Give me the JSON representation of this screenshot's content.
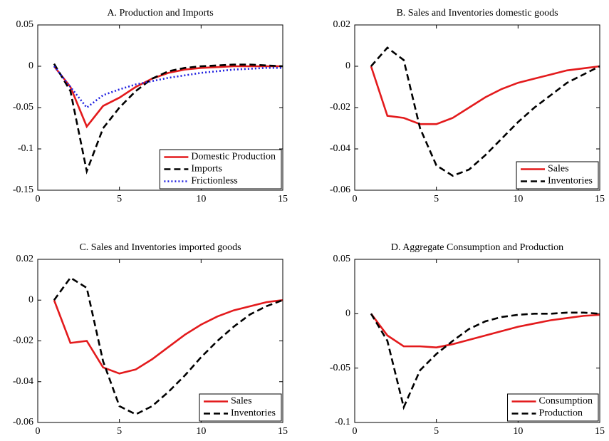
{
  "chart_data": [
    {
      "type": "line",
      "title": "A. Production and Imports",
      "x": [
        1,
        2,
        3,
        4,
        5,
        6,
        7,
        8,
        9,
        10,
        11,
        12,
        13,
        14,
        15
      ],
      "xlim": [
        0,
        15
      ],
      "xticks": [
        0,
        5,
        10,
        15
      ],
      "ylim": [
        -0.15,
        0.05
      ],
      "yticks": [
        -0.15,
        -0.1,
        -0.05,
        0,
        0.05
      ],
      "legend": "lower right",
      "series": [
        {
          "name": "Domestic Production",
          "color": "#e31a1c",
          "style": "solid",
          "values": [
            0,
            -0.025,
            -0.073,
            -0.048,
            -0.038,
            -0.025,
            -0.015,
            -0.008,
            -0.004,
            -0.002,
            -0.001,
            0,
            0,
            0,
            0
          ]
        },
        {
          "name": "Imports",
          "color": "#000000",
          "style": "dashed",
          "values": [
            0.003,
            -0.03,
            -0.127,
            -0.075,
            -0.05,
            -0.03,
            -0.015,
            -0.006,
            -0.002,
            0,
            0.001,
            0.002,
            0.002,
            0.001,
            0
          ]
        },
        {
          "name": "Frictionless",
          "color": "#1f1fe0",
          "style": "dotted",
          "values": [
            0,
            -0.025,
            -0.05,
            -0.035,
            -0.028,
            -0.022,
            -0.018,
            -0.014,
            -0.011,
            -0.008,
            -0.006,
            -0.004,
            -0.003,
            -0.002,
            -0.002
          ]
        }
      ]
    },
    {
      "type": "line",
      "title": "B. Sales and Inventories domestic goods",
      "x": [
        1,
        2,
        3,
        4,
        5,
        6,
        7,
        8,
        9,
        10,
        11,
        12,
        13,
        14,
        15
      ],
      "xlim": [
        0,
        15
      ],
      "xticks": [
        0,
        5,
        10,
        15
      ],
      "ylim": [
        -0.06,
        0.02
      ],
      "yticks": [
        -0.06,
        -0.04,
        -0.02,
        0,
        0.02
      ],
      "legend": "lower right",
      "series": [
        {
          "name": "Sales",
          "color": "#e31a1c",
          "style": "solid",
          "values": [
            0,
            -0.024,
            -0.025,
            -0.028,
            -0.028,
            -0.025,
            -0.02,
            -0.015,
            -0.011,
            -0.008,
            -0.006,
            -0.004,
            -0.002,
            -0.001,
            0
          ]
        },
        {
          "name": "Inventories",
          "color": "#000000",
          "style": "dashed",
          "values": [
            0,
            0.009,
            0.003,
            -0.03,
            -0.048,
            -0.053,
            -0.05,
            -0.043,
            -0.035,
            -0.027,
            -0.02,
            -0.014,
            -0.008,
            -0.004,
            0
          ]
        }
      ]
    },
    {
      "type": "line",
      "title": "C. Sales and Inventories imported goods",
      "x": [
        1,
        2,
        3,
        4,
        5,
        6,
        7,
        8,
        9,
        10,
        11,
        12,
        13,
        14,
        15
      ],
      "xlim": [
        0,
        15
      ],
      "xticks": [
        0,
        5,
        10,
        15
      ],
      "ylim": [
        -0.06,
        0.02
      ],
      "yticks": [
        -0.06,
        -0.04,
        -0.02,
        0,
        0.02
      ],
      "legend": "lower right",
      "series": [
        {
          "name": "Sales",
          "color": "#e31a1c",
          "style": "solid",
          "values": [
            0,
            -0.021,
            -0.02,
            -0.033,
            -0.036,
            -0.034,
            -0.029,
            -0.023,
            -0.017,
            -0.012,
            -0.008,
            -0.005,
            -0.003,
            -0.001,
            0
          ]
        },
        {
          "name": "Inventories",
          "color": "#000000",
          "style": "dashed",
          "values": [
            0,
            0.011,
            0.006,
            -0.03,
            -0.052,
            -0.056,
            -0.052,
            -0.045,
            -0.037,
            -0.028,
            -0.02,
            -0.013,
            -0.007,
            -0.003,
            0
          ]
        }
      ]
    },
    {
      "type": "line",
      "title": "D. Aggregate Consumption and Production",
      "x": [
        1,
        2,
        3,
        4,
        5,
        6,
        7,
        8,
        9,
        10,
        11,
        12,
        13,
        14,
        15
      ],
      "xlim": [
        0,
        15
      ],
      "xticks": [
        0,
        5,
        10,
        15
      ],
      "ylim": [
        -0.1,
        0.05
      ],
      "yticks": [
        -0.1,
        -0.05,
        0,
        0.05
      ],
      "legend": "lower right",
      "series": [
        {
          "name": "Consumption",
          "color": "#e31a1c",
          "style": "solid",
          "values": [
            0,
            -0.02,
            -0.03,
            -0.03,
            -0.031,
            -0.028,
            -0.024,
            -0.02,
            -0.016,
            -0.012,
            -0.009,
            -0.006,
            -0.004,
            -0.002,
            -0.001
          ]
        },
        {
          "name": "Production",
          "color": "#000000",
          "style": "dashed",
          "values": [
            0,
            -0.025,
            -0.086,
            -0.052,
            -0.037,
            -0.025,
            -0.014,
            -0.007,
            -0.003,
            -0.001,
            0,
            0,
            0.001,
            0.001,
            0
          ]
        }
      ]
    }
  ]
}
